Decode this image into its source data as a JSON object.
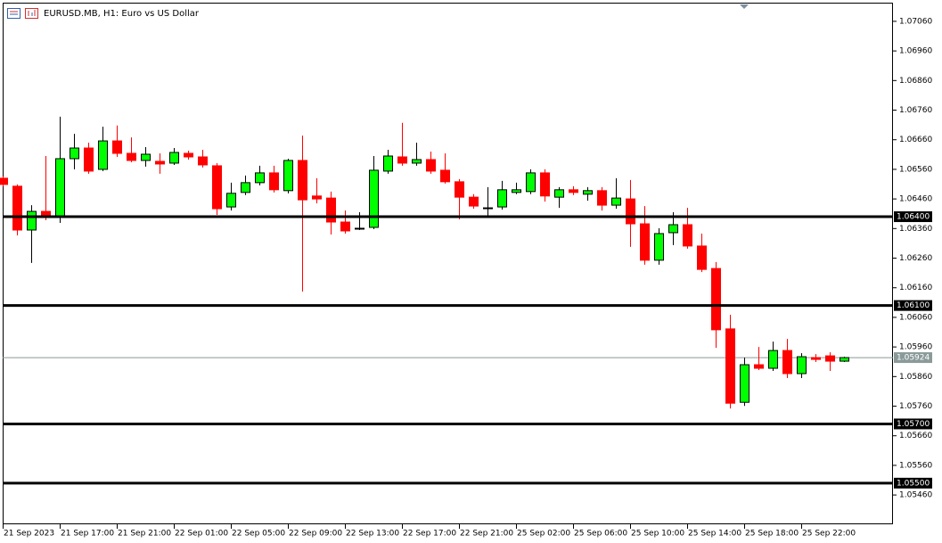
{
  "chart_data": {
    "type": "candlestick",
    "title": "EURUSD.MB, H1:  Euro vs US Dollar",
    "categories": [
      "21 Sep 2023",
      null,
      null,
      null,
      "21 Sep 17:00",
      null,
      null,
      null,
      "21 Sep 21:00",
      null,
      null,
      null,
      "22 Sep 01:00",
      null,
      null,
      null,
      "22 Sep 05:00",
      null,
      null,
      null,
      "22 Sep 09:00",
      null,
      null,
      null,
      "22 Sep 13:00",
      null,
      null,
      null,
      "22 Sep 17:00",
      null,
      null,
      null,
      "22 Sep 21:00",
      null,
      null,
      null,
      "25 Sep 02:00",
      null,
      null,
      null,
      "25 Sep 06:00",
      null,
      null,
      null,
      "25 Sep 10:00",
      null,
      null,
      null,
      "25 Sep 14:00",
      null,
      null,
      null,
      "25 Sep 18:00",
      null,
      null,
      null,
      "25 Sep 22:00",
      null,
      null,
      null
    ],
    "open": [
      1.0653,
      1.06503,
      1.06355,
      1.06418,
      1.06403,
      1.06596,
      1.06632,
      1.0656,
      1.06656,
      1.06614,
      1.0659,
      1.06587,
      1.06581,
      1.06614,
      1.06602,
      1.06572,
      1.06433,
      1.06482,
      1.06515,
      1.06548,
      1.06488,
      1.0659,
      1.0647,
      1.06463,
      1.06382,
      1.06358,
      1.06364,
      1.06554,
      1.06602,
      1.06581,
      1.06593,
      1.06557,
      1.06518,
      1.06466,
      1.06427,
      1.06433,
      1.06482,
      1.06485,
      1.06548,
      1.06466,
      1.06491,
      1.06476,
      1.06488,
      1.06439,
      1.0646,
      1.06376,
      1.06253,
      1.06346,
      1.06373,
      1.06301,
      1.06225,
      1.06021,
      1.05773,
      1.059,
      1.05888,
      1.05948,
      1.0587,
      1.05924,
      1.0593,
      1.05912
    ],
    "high": [
      1.06536,
      1.06509,
      1.06439,
      1.06605,
      1.06738,
      1.0668,
      1.0665,
      1.06704,
      1.06708,
      1.06668,
      1.06635,
      1.06614,
      1.06632,
      1.06623,
      1.06626,
      1.06581,
      1.06515,
      1.06539,
      1.06572,
      1.06572,
      1.06596,
      1.06674,
      1.0653,
      1.06485,
      1.06421,
      1.06415,
      1.06605,
      1.06626,
      1.06717,
      1.0665,
      1.0662,
      1.06614,
      1.06527,
      1.06476,
      1.065,
      1.06521,
      1.06515,
      1.0656,
      1.0656,
      1.065,
      1.06503,
      1.065,
      1.065,
      1.0653,
      1.06524,
      1.06436,
      1.06361,
      1.06415,
      1.0643,
      1.06343,
      1.06247,
      1.06069,
      1.05924,
      1.0596,
      1.05978,
      1.05987,
      1.05939,
      1.05936,
      1.05942,
      1.05927
    ],
    "low": [
      1.06503,
      1.06337,
      1.06244,
      1.06388,
      1.06379,
      1.0656,
      1.06545,
      1.06554,
      1.06602,
      1.06584,
      1.06569,
      1.06545,
      1.06575,
      1.06593,
      1.06566,
      1.06406,
      1.06421,
      1.06473,
      1.06506,
      1.06482,
      1.06479,
      1.06147,
      1.06445,
      1.0634,
      1.06343,
      1.06355,
      1.06358,
      1.06545,
      1.06572,
      1.06572,
      1.06545,
      1.06512,
      1.06391,
      1.06427,
      1.064,
      1.06424,
      1.06476,
      1.06476,
      1.06451,
      1.0643,
      1.06473,
      1.06454,
      1.06421,
      1.06427,
      1.06298,
      1.06238,
      1.06238,
      1.06304,
      1.06292,
      1.06213,
      1.05957,
      1.05752,
      1.05761,
      1.05882,
      1.05879,
      1.05855,
      1.05855,
      1.05909,
      1.05879,
      1.05909
    ],
    "close": [
      1.06509,
      1.06355,
      1.06418,
      1.06403,
      1.06596,
      1.06632,
      1.06554,
      1.06656,
      1.06614,
      1.0659,
      1.06611,
      1.06578,
      1.06617,
      1.06602,
      1.06575,
      1.06427,
      1.06479,
      1.06515,
      1.06548,
      1.06491,
      1.0659,
      1.06457,
      1.0646,
      1.06382,
      1.06352,
      1.06361,
      1.06557,
      1.06605,
      1.06581,
      1.06593,
      1.06554,
      1.06518,
      1.06466,
      1.06436,
      1.0643,
      1.06491,
      1.06491,
      1.06548,
      1.0647,
      1.06491,
      1.06482,
      1.06488,
      1.06439,
      1.06463,
      1.06376,
      1.06253,
      1.06343,
      1.06373,
      1.06301,
      1.06222,
      1.06018,
      1.0577,
      1.059,
      1.05888,
      1.05948,
      1.0587,
      1.05927,
      1.05918,
      1.05912,
      1.05924
    ],
    "up_color": "#00ff00",
    "up_outline": "#000000",
    "down_color": "#ff0000",
    "ylim": [
      1.05361,
      1.07123
    ],
    "yticks": [
      {
        "value": 1.0706,
        "label": "1.07060"
      },
      {
        "value": 1.0696,
        "label": "1.06960"
      },
      {
        "value": 1.0686,
        "label": "1.06860"
      },
      {
        "value": 1.0676,
        "label": "1.06760"
      },
      {
        "value": 1.0666,
        "label": "1.06660"
      },
      {
        "value": 1.0656,
        "label": "1.06560"
      },
      {
        "value": 1.0646,
        "label": "1.06460"
      },
      {
        "value": 1.0636,
        "label": "1.06360"
      },
      {
        "value": 1.0626,
        "label": "1.06260"
      },
      {
        "value": 1.0616,
        "label": "1.06160"
      },
      {
        "value": 1.0606,
        "label": "1.06060"
      },
      {
        "value": 1.0596,
        "label": "1.05960"
      },
      {
        "value": 1.0586,
        "label": "1.05860"
      },
      {
        "value": 1.0576,
        "label": "1.05760"
      },
      {
        "value": 1.0566,
        "label": "1.05660"
      },
      {
        "value": 1.0556,
        "label": "1.05560"
      },
      {
        "value": 1.0546,
        "label": "1.05460"
      }
    ],
    "levels": [
      {
        "value": 1.064,
        "label": "1.06400"
      },
      {
        "value": 1.061,
        "label": "1.06100"
      },
      {
        "value": 1.057,
        "label": "1.05700"
      },
      {
        "value": 1.055,
        "label": "1.05500"
      }
    ],
    "level_color": "#000000",
    "current_price": 1.05924,
    "current_price_color": "#8a9a99"
  }
}
